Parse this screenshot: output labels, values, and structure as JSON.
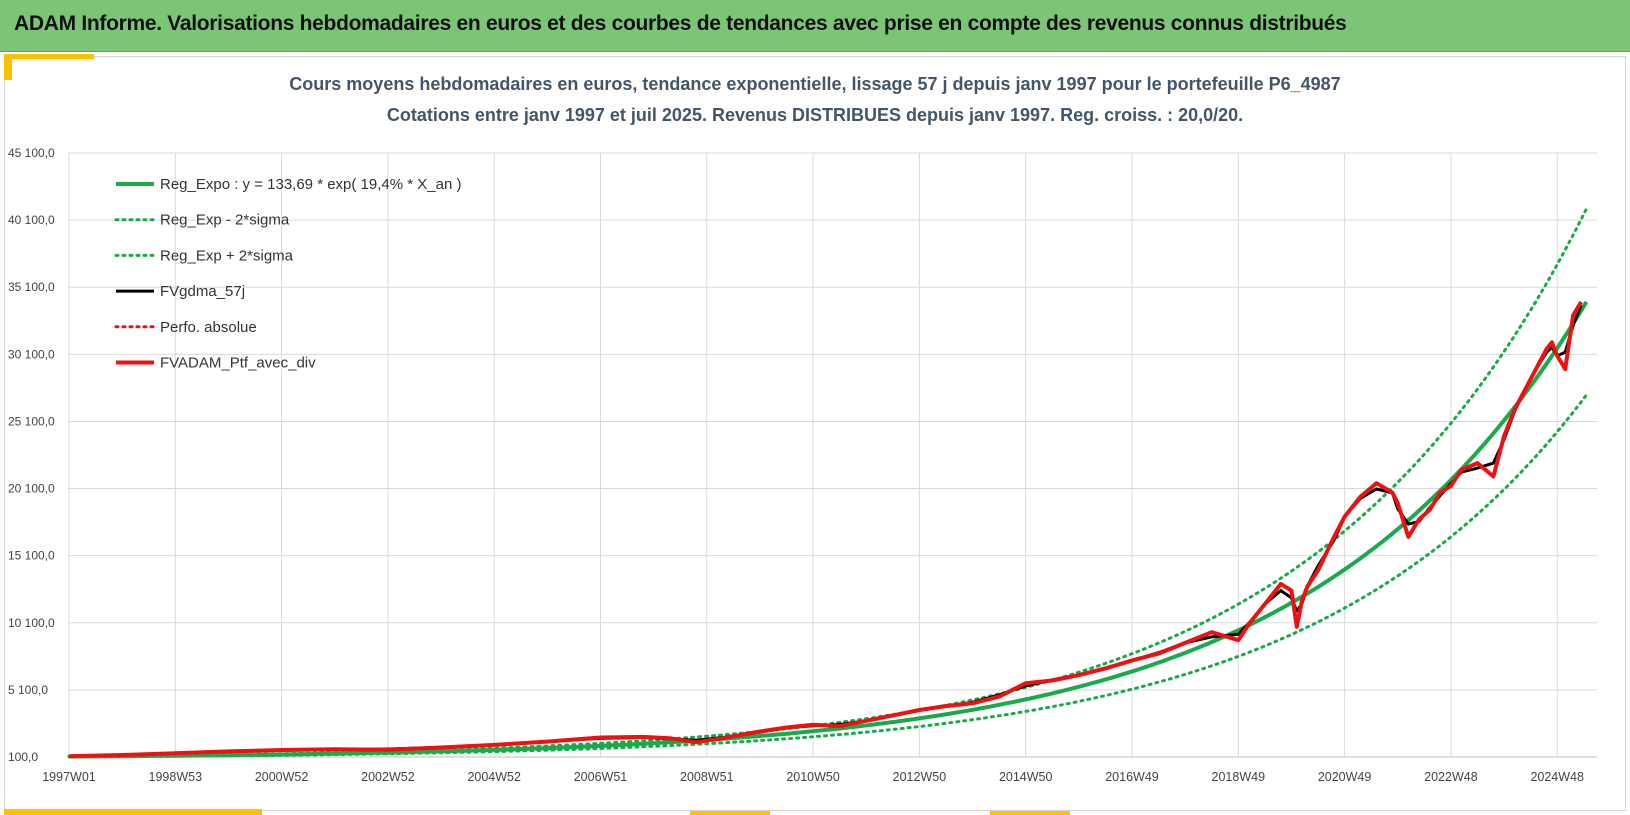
{
  "header": {
    "title": "ADAM Informe. Valorisations hebdomadaires en euros et des courbes de tendances avec prise en compte des revenus connus distribués"
  },
  "chart_data": {
    "type": "line",
    "title": "Cours moyens hebdomadaires  en euros, tendance exponentielle, lissage 57 j depuis janv 1997 pour le portefeuille P6_4987",
    "subtitle": "Cotations entre janv 1997 et juil 2025. Revenus DISTRIBUES depuis janv 1997. Reg. croiss. : 20,0/20.",
    "xlabel": "",
    "ylabel": "",
    "x_range": [
      1997.0,
      2025.55
    ],
    "ylim": [
      100,
      45100
    ],
    "y_ticks": [
      "100,0",
      "5 100,0",
      "10 100,0",
      "15 100,0",
      "20 100,0",
      "25 100,0",
      "30 100,0",
      "35 100,0",
      "40 100,0",
      "45 100,0"
    ],
    "y_tick_values": [
      100,
      5100,
      10100,
      15100,
      20100,
      25100,
      30100,
      35100,
      40100,
      45100
    ],
    "x_ticks": [
      "1997W01",
      "1998W53",
      "2000W52",
      "2002W52",
      "2004W52",
      "2006W51",
      "2008W51",
      "2010W50",
      "2012W50",
      "2014W50",
      "2016W49",
      "2018W49",
      "2020W49",
      "2022W48",
      "2024W48"
    ],
    "x_tick_values": [
      1997.0,
      1999.0,
      2001.0,
      2003.0,
      2005.0,
      2007.0,
      2009.0,
      2011.0,
      2013.0,
      2015.0,
      2017.0,
      2019.0,
      2021.0,
      2023.0,
      2025.0
    ],
    "grid": true,
    "legend_position": "top-left",
    "regression": {
      "a": 133.69,
      "rate": 0.194,
      "sigma_factor": 0.204
    },
    "series": [
      {
        "name": "Reg_Expo : y = 133,69 * exp( 19,4% *  X_an )",
        "color": "#1aaa4b",
        "style": "solid",
        "width": 4
      },
      {
        "name": "Reg_Exp - 2*sigma",
        "color": "#1aaa4b",
        "style": "dotted",
        "width": 3
      },
      {
        "name": "Reg_Exp + 2*sigma",
        "color": "#1aaa4b",
        "style": "dotted",
        "width": 3
      },
      {
        "name": "FVgdma_57j",
        "color": "#000000",
        "style": "solid",
        "width": 3
      },
      {
        "name": "Perfo. absolue",
        "color": "#ee1111",
        "style": "dotted",
        "width": 3
      },
      {
        "name": "FVADAM_Ptf_avec_div",
        "color": "#ee1111",
        "style": "solid",
        "width": 4
      }
    ],
    "portfolio_points": {
      "x": [
        1997.0,
        1998.0,
        1999.0,
        2000.0,
        2001.0,
        2002.0,
        2003.0,
        2004.0,
        2005.0,
        2006.0,
        2007.0,
        2007.8,
        2008.3,
        2008.8,
        2009.3,
        2010.0,
        2010.5,
        2011.0,
        2011.5,
        2012.0,
        2012.5,
        2013.0,
        2013.5,
        2014.0,
        2014.5,
        2015.0,
        2015.5,
        2016.0,
        2016.5,
        2017.0,
        2017.5,
        2018.0,
        2018.5,
        2019.0,
        2019.2,
        2019.5,
        2019.8,
        2020.0,
        2020.1,
        2020.2,
        2020.3,
        2020.5,
        2020.8,
        2021.0,
        2021.3,
        2021.6,
        2021.9,
        2022.0,
        2022.2,
        2022.4,
        2022.6,
        2022.8,
        2023.0,
        2023.2,
        2023.5,
        2023.8,
        2024.0,
        2024.2,
        2024.4,
        2024.6,
        2024.8,
        2024.9,
        2025.0,
        2025.15,
        2025.3,
        2025.45
      ],
      "y": [
        150,
        250,
        380,
        520,
        620,
        680,
        640,
        810,
        1000,
        1250,
        1550,
        1600,
        1500,
        1200,
        1500,
        2000,
        2300,
        2500,
        2400,
        2800,
        3200,
        3600,
        3900,
        4100,
        4600,
        5600,
        5800,
        6200,
        6700,
        7300,
        7800,
        8600,
        9400,
        8800,
        10000,
        11500,
        13000,
        12500,
        9800,
        11800,
        12800,
        14000,
        16500,
        18000,
        19500,
        20500,
        19800,
        19000,
        16500,
        17800,
        18500,
        19800,
        20300,
        21500,
        22000,
        21000,
        24000,
        26000,
        27500,
        29000,
        30500,
        31000,
        30000,
        29000,
        33000,
        34000
      ]
    }
  }
}
